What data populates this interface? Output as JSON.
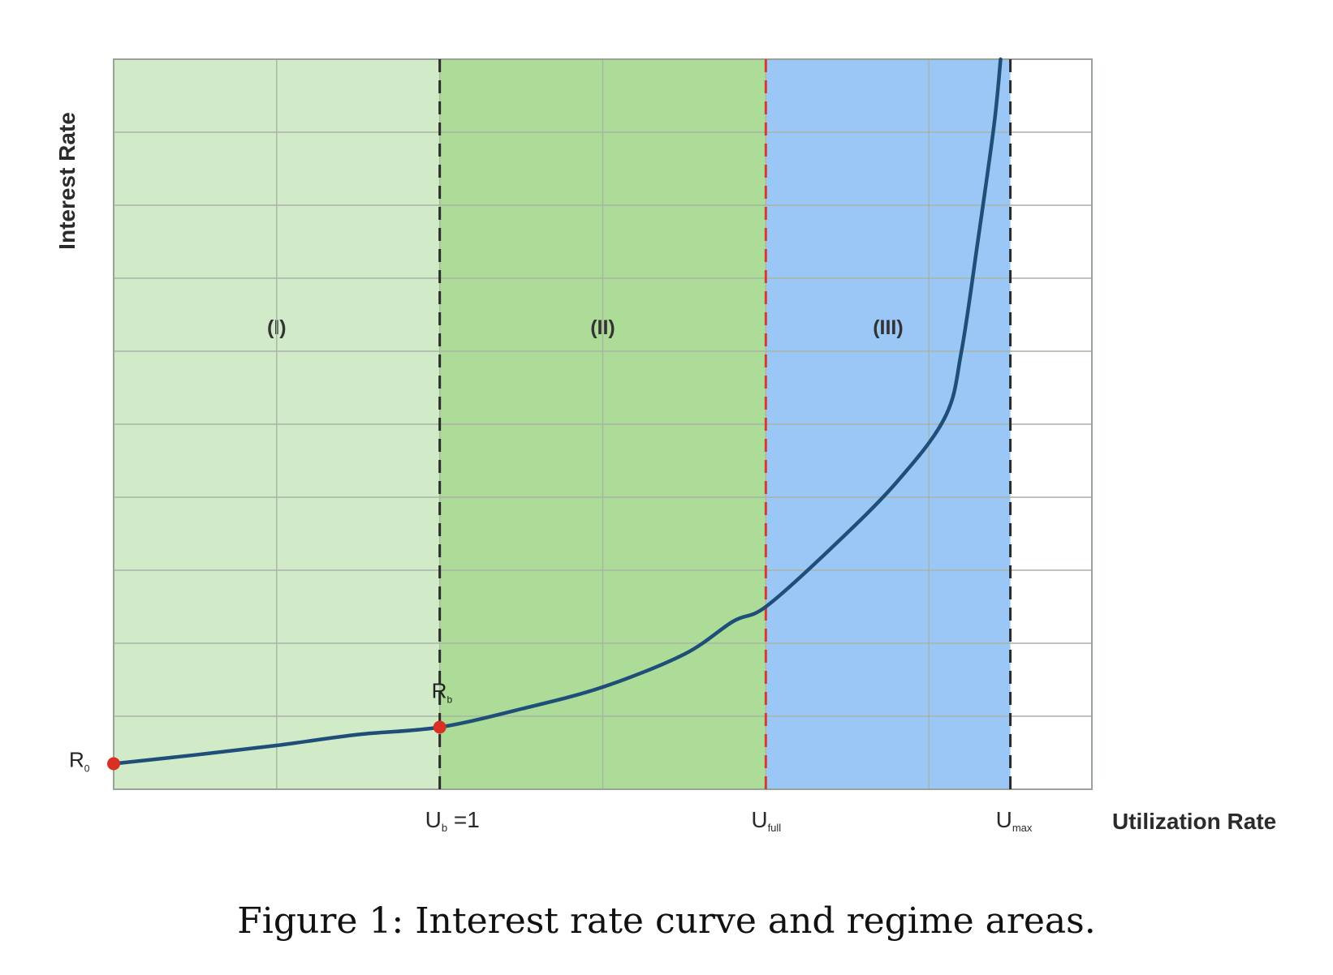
{
  "figure": {
    "caption": "Figure 1: Interest rate curve and regime areas."
  },
  "chart_data": {
    "type": "line",
    "title": "",
    "xlabel": "Utilization Rate",
    "ylabel": "Interest Rate",
    "xlim": [
      0,
      3
    ],
    "ylim": [
      0,
      10
    ],
    "grid": true,
    "x_ticks": [
      {
        "x": 1.0,
        "main": "U",
        "sub": "b",
        "suffix": " =1"
      },
      {
        "x": 2.0,
        "main": "U",
        "sub": "full",
        "suffix": ""
      },
      {
        "x": 2.75,
        "main": "U",
        "sub": "max",
        "suffix": ""
      }
    ],
    "regions": [
      {
        "label": "(I)",
        "x_start": 0,
        "x_end": 1.0,
        "color": "#d1ebc9"
      },
      {
        "label": "(II)",
        "x_start": 1.0,
        "x_end": 2.0,
        "color": "#acdc97"
      },
      {
        "label": "(III)",
        "x_start": 2.0,
        "x_end": 2.75,
        "color": "#9ac7f5"
      }
    ],
    "boundaries": [
      {
        "x": 1.0,
        "color": "#2b2b2b",
        "style": "dashed"
      },
      {
        "x": 2.0,
        "color": "#d63b2f",
        "style": "dashed"
      },
      {
        "x": 2.75,
        "color": "#2b2b2b",
        "style": "dashed"
      }
    ],
    "series": [
      {
        "color": "#1f4e79",
        "x": [
          0,
          0.25,
          0.5,
          0.75,
          1.0,
          1.25,
          1.5,
          1.75,
          1.9,
          2.0,
          2.2,
          2.4,
          2.55,
          2.6,
          2.65,
          2.7,
          2.72
        ],
        "y": [
          0.35,
          0.47,
          0.6,
          0.75,
          0.85,
          1.1,
          1.4,
          1.85,
          2.3,
          2.5,
          3.3,
          4.2,
          5.1,
          6.0,
          7.5,
          9.1,
          10.0
        ]
      }
    ],
    "points": [
      {
        "label": "R",
        "sub": "0",
        "x": 0,
        "y": 0.35,
        "color": "#d93025"
      },
      {
        "label": "R",
        "sub": "b",
        "x": 1.0,
        "y": 0.85,
        "color": "#d93025"
      }
    ]
  }
}
